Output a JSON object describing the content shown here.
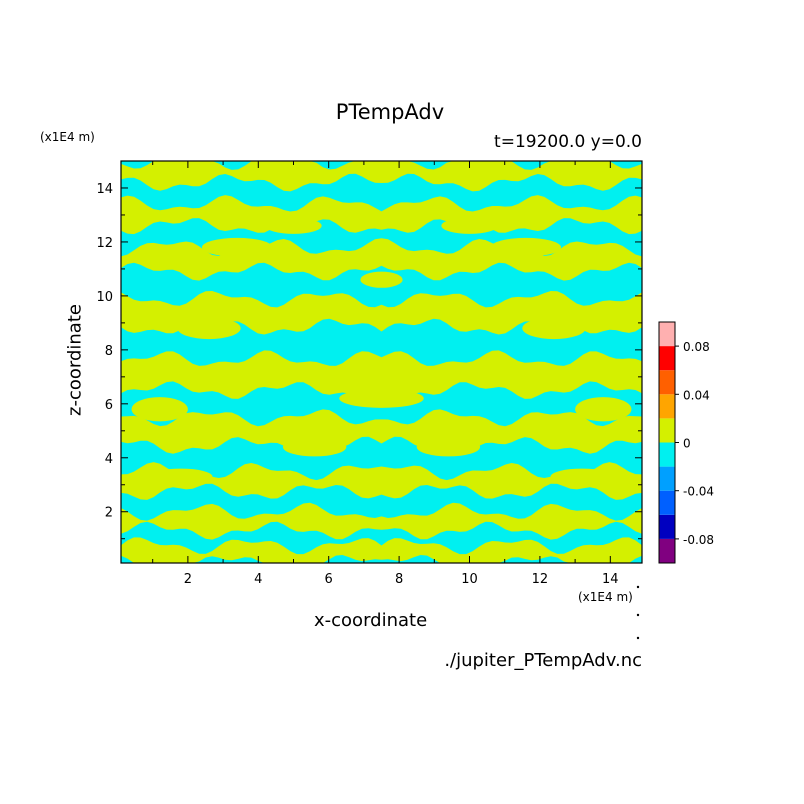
{
  "title": "PTempAdv",
  "subtitle": "t=19200.0 y=0.0",
  "footer": "./jupiter_PTempAdv.nc",
  "colors": {
    "positive": "#d4f000",
    "negative": "#00f0f0",
    "frame": "#000000"
  },
  "chart_data": {
    "type": "heatmap",
    "xlabel": "x-coordinate",
    "ylabel": "z-coordinate",
    "x_unit_label": "(x1E4 m)",
    "y_unit_label": "(x1E4 m)",
    "xlim": [
      0.1,
      14.9
    ],
    "ylim": [
      0.1,
      15
    ],
    "x_ticks": [
      2,
      4,
      6,
      8,
      10,
      12,
      14
    ],
    "y_ticks": [
      2,
      4,
      6,
      8,
      10,
      12,
      14
    ],
    "x_tick_labels": [
      "2",
      "4",
      "6",
      "8",
      "10",
      "12",
      "14"
    ],
    "y_tick_labels": [
      "2",
      "4",
      "6",
      "8",
      "10",
      "12",
      "14"
    ],
    "mirror_symmetric_about_x": 7.5,
    "field_description_values": "two-level field: values 0 to 0.02 (yellow-green) and -0.02 to 0 (cyan); pattern mirror-symmetric about x=7.5",
    "field_profile": [
      {
        "z": 0.5,
        "level": 0
      },
      {
        "z": 1.0,
        "level": -0.02
      },
      {
        "z": 1.6,
        "level": 0
      },
      {
        "z": 2.4,
        "level": -0.02
      },
      {
        "z": 3.1,
        "level": 0
      },
      {
        "z": 3.9,
        "level": -0.02
      },
      {
        "z": 5.0,
        "level": 0
      },
      {
        "z": 6.0,
        "level": -0.02
      },
      {
        "z": 7.0,
        "level": 0
      },
      {
        "z": 8.3,
        "level": -0.02
      },
      {
        "z": 9.4,
        "level": 0
      },
      {
        "z": 10.4,
        "level": -0.02
      },
      {
        "z": 11.4,
        "level": 0
      },
      {
        "z": 12.2,
        "level": -0.02
      },
      {
        "z": 13.0,
        "level": 0
      },
      {
        "z": 13.8,
        "level": -0.02
      },
      {
        "z": 14.6,
        "level": 0
      }
    ],
    "colorbar": {
      "levels": [
        -0.1,
        -0.08,
        -0.06,
        -0.04,
        -0.02,
        0,
        0.02,
        0.04,
        0.06,
        0.08,
        0.1
      ],
      "colors": [
        "#800080",
        "#0000c0",
        "#0060ff",
        "#00a0ff",
        "#00f0f0",
        "#d4f000",
        "#ffa500",
        "#ff6000",
        "#ff0000",
        "#ffb0b0"
      ],
      "tick_values": [
        -0.08,
        -0.04,
        0,
        0.04,
        0.08
      ],
      "tick_labels": [
        "-0.08",
        "-0.04",
        "0",
        "0.04",
        "0.08"
      ]
    }
  }
}
